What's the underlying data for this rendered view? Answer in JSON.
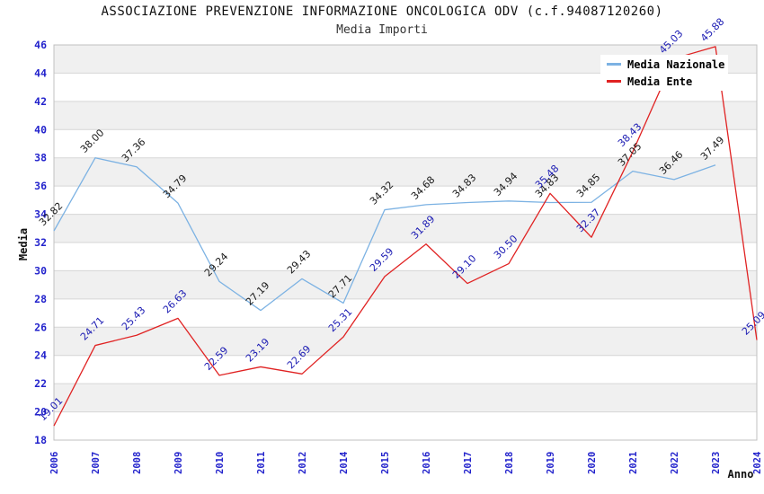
{
  "chart": {
    "title": "ASSOCIAZIONE PREVENZIONE INFORMAZIONE ONCOLOGICA ODV (c.f.94087120260)",
    "subtitle": "Media Importi",
    "xlabel": "Anno",
    "ylabel": "Media"
  },
  "chart_data": {
    "type": "line",
    "categories": [
      "2006",
      "2007",
      "2008",
      "2009",
      "2010",
      "2011",
      "2012",
      "2014",
      "2015",
      "2016",
      "2017",
      "2018",
      "2019",
      "2020",
      "2021",
      "2022",
      "2023",
      "2024"
    ],
    "series": [
      {
        "name": "Media Nazionale",
        "color": "#7cb2e3",
        "label_color": "#1a1a1a",
        "values": [
          32.82,
          38.0,
          37.36,
          34.79,
          29.24,
          27.19,
          29.43,
          27.71,
          34.32,
          34.68,
          34.83,
          34.94,
          34.83,
          34.85,
          37.05,
          36.46,
          37.49,
          null
        ]
      },
      {
        "name": "Media Ente",
        "color": "#e02222",
        "label_color": "#1b1bb3",
        "values": [
          19.01,
          24.71,
          25.43,
          26.63,
          22.59,
          23.19,
          22.69,
          25.31,
          29.59,
          31.89,
          29.1,
          30.5,
          35.48,
          32.37,
          38.43,
          45.03,
          45.88,
          25.09
        ]
      }
    ],
    "ylim": [
      18,
      46
    ],
    "ytick_step": 2,
    "grid": "horizontal gridlines with alternating gray bands",
    "legend_position": "top-right",
    "label_decimals": 2,
    "tick_color": "#2323cc",
    "band_color": "#f0f0f0",
    "gridline_color": "#d6d6d6",
    "border_color": "#c0c0c0"
  }
}
